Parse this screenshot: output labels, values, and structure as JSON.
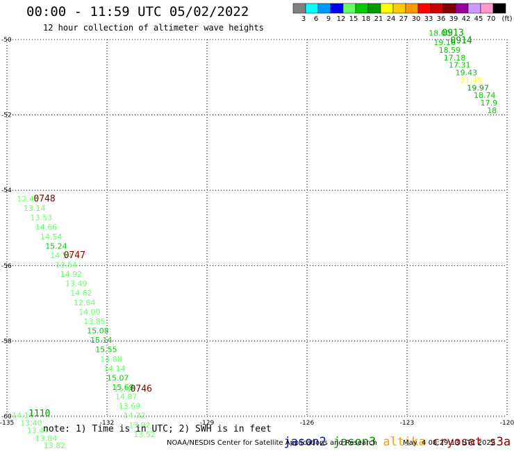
{
  "header": {
    "title": "00:00 - 11:59 UTC 05/02/2022",
    "subtitle": "12 hour collection of altimeter wave heights"
  },
  "legend": {
    "colors": [
      "#808080",
      "#00ffff",
      "#0099ff",
      "#0000ff",
      "#66ff66",
      "#00cc00",
      "#009900",
      "#ffff00",
      "#ffcc00",
      "#ff9900",
      "#ff0000",
      "#cc0000",
      "#800000",
      "#990099",
      "#cc99ff",
      "#ff99cc",
      "#000000"
    ],
    "labels": [
      "3",
      "6",
      "9",
      "12",
      "15",
      "18",
      "21",
      "24",
      "27",
      "30",
      "33",
      "36",
      "39",
      "42",
      "45",
      "70",
      "(ft)"
    ]
  },
  "footer": {
    "note": "note: 1) Time is in UTC; 2) SWH is in feet",
    "satellites": [
      {
        "name": "jason2",
        "color": "#0000cc"
      },
      {
        "name": "jason3",
        "color": "#009900"
      },
      {
        "name": "altika",
        "color": "#ff9900"
      },
      {
        "name": "cryosat",
        "color": "#cc0000"
      },
      {
        "name": "s3a",
        "color": "#800000"
      }
    ],
    "credit": "NOAA/NESDIS Center for Satellite Applications and Research",
    "timestamp": "May  4 08:29:13 UTC 2022"
  },
  "chart_data": {
    "type": "scatter",
    "xlim": [
      -135,
      -120
    ],
    "ylim": [
      -60,
      -50
    ],
    "x_ticks": [
      -135,
      -132,
      -129,
      -126,
      -123,
      -120
    ],
    "x_tick_labels": [
      "-135",
      "-132",
      "-129",
      "-126",
      "-123",
      "-120"
    ],
    "y_ticks": [
      -50,
      -52,
      -54,
      -56,
      -58,
      -60
    ],
    "y_tick_labels": [
      "-50",
      "-52",
      "-54",
      "-56",
      "-58",
      "-60"
    ],
    "grid": true,
    "points": [
      {
        "lon": -134.7,
        "lat": -54.3,
        "label": "12.48",
        "color": "#66ff66"
      },
      {
        "lon": -134.5,
        "lat": -54.55,
        "label": "13.14",
        "color": "#66ff66"
      },
      {
        "lon": -134.3,
        "lat": -54.8,
        "label": "13.53",
        "color": "#66ff66"
      },
      {
        "lon": -134.15,
        "lat": -55.05,
        "label": "14.66",
        "color": "#66ff66"
      },
      {
        "lon": -134.0,
        "lat": -55.3,
        "label": "14.54",
        "color": "#66ff66"
      },
      {
        "lon": -133.85,
        "lat": -55.55,
        "label": "15.24",
        "color": "#00cc00"
      },
      {
        "lon": -133.7,
        "lat": -55.8,
        "label": "14.54",
        "color": "#66ff66"
      },
      {
        "lon": -133.55,
        "lat": -56.05,
        "label": "13.54",
        "color": "#66ff66"
      },
      {
        "lon": -133.4,
        "lat": -56.3,
        "label": "14.92",
        "color": "#66ff66"
      },
      {
        "lon": -133.25,
        "lat": -56.55,
        "label": "13.49",
        "color": "#66ff66"
      },
      {
        "lon": -133.1,
        "lat": -56.8,
        "label": "14.62",
        "color": "#66ff66"
      },
      {
        "lon": -133.0,
        "lat": -57.05,
        "label": "12.64",
        "color": "#66ff66"
      },
      {
        "lon": -132.85,
        "lat": -57.3,
        "label": "14.00",
        "color": "#66ff66"
      },
      {
        "lon": -132.7,
        "lat": -57.55,
        "label": "13.85",
        "color": "#66ff66"
      },
      {
        "lon": -132.6,
        "lat": -57.8,
        "label": "15.08",
        "color": "#00cc00"
      },
      {
        "lon": -132.5,
        "lat": -58.05,
        "label": "15.14",
        "color": "#00cc00"
      },
      {
        "lon": -132.35,
        "lat": -58.3,
        "label": "15.55",
        "color": "#00cc00"
      },
      {
        "lon": -132.2,
        "lat": -58.55,
        "label": "14.88",
        "color": "#66ff66"
      },
      {
        "lon": -132.1,
        "lat": -58.8,
        "label": "14.14",
        "color": "#66ff66"
      },
      {
        "lon": -132.0,
        "lat": -59.05,
        "label": "15.07",
        "color": "#00cc00"
      },
      {
        "lon": -131.85,
        "lat": -59.3,
        "label": "15.69",
        "color": "#00cc00"
      },
      {
        "lon": -131.8,
        "lat": -59.35,
        "label": "15.69",
        "color": "#66ff66"
      },
      {
        "lon": -131.75,
        "lat": -59.55,
        "label": "14.87",
        "color": "#66ff66"
      },
      {
        "lon": -131.65,
        "lat": -59.8,
        "label": "13.69",
        "color": "#66ff66"
      },
      {
        "lon": -131.5,
        "lat": -60.05,
        "label": "14.32",
        "color": "#66ff66"
      },
      {
        "lon": -131.35,
        "lat": -60.3,
        "label": "13.92",
        "color": "#66ff66"
      },
      {
        "lon": -131.2,
        "lat": -60.55,
        "label": "13.52",
        "color": "#66ff66"
      },
      {
        "lon": -134.85,
        "lat": -60.05,
        "label": "14.15",
        "color": "#66ff66"
      },
      {
        "lon": -134.6,
        "lat": -60.25,
        "label": "13.40",
        "color": "#66ff66"
      },
      {
        "lon": -134.4,
        "lat": -60.45,
        "label": "13.47",
        "color": "#66ff66"
      },
      {
        "lon": -134.15,
        "lat": -60.65,
        "label": "13.84",
        "color": "#66ff66"
      },
      {
        "lon": -133.9,
        "lat": -60.85,
        "label": "13.82",
        "color": "#66ff66"
      },
      {
        "lon": -122.35,
        "lat": -49.9,
        "label": "18.00",
        "color": "#00cc00"
      },
      {
        "lon": -122.2,
        "lat": -50.15,
        "label": "19.16",
        "color": "#00cc00"
      },
      {
        "lon": -122.05,
        "lat": -50.35,
        "label": "18.59",
        "color": "#00cc00"
      },
      {
        "lon": -121.9,
        "lat": -50.55,
        "label": "17.18",
        "color": "#00cc00"
      },
      {
        "lon": -121.75,
        "lat": -50.75,
        "label": "17.31",
        "color": "#00cc00"
      },
      {
        "lon": -121.55,
        "lat": -50.95,
        "label": "19.43",
        "color": "#00cc00"
      },
      {
        "lon": -121.4,
        "lat": -51.15,
        "label": "21.45",
        "color": "#ffff00"
      },
      {
        "lon": -121.2,
        "lat": -51.35,
        "label": "19.97",
        "color": "#009900"
      },
      {
        "lon": -121.0,
        "lat": -51.55,
        "label": "18.74",
        "color": "#00cc00"
      },
      {
        "lon": -120.8,
        "lat": -51.75,
        "label": "17.9",
        "color": "#00cc00"
      },
      {
        "lon": -120.6,
        "lat": -51.95,
        "label": "18",
        "color": "#00cc00"
      }
    ],
    "time_labels": [
      {
        "lon": -134.2,
        "lat": -54.3,
        "label": "0748",
        "color": "#800000"
      },
      {
        "lon": -133.3,
        "lat": -55.8,
        "label": "0747",
        "color": "#800000"
      },
      {
        "lon": -131.3,
        "lat": -59.35,
        "label": "0746",
        "color": "#800000"
      },
      {
        "lon": -134.35,
        "lat": -60.0,
        "label": "1110",
        "color": "#009900"
      },
      {
        "lon": -121.95,
        "lat": -49.9,
        "label": "0913",
        "color": "#009900"
      },
      {
        "lon": -121.7,
        "lat": -50.1,
        "label": "0914",
        "color": "#009900"
      }
    ]
  }
}
